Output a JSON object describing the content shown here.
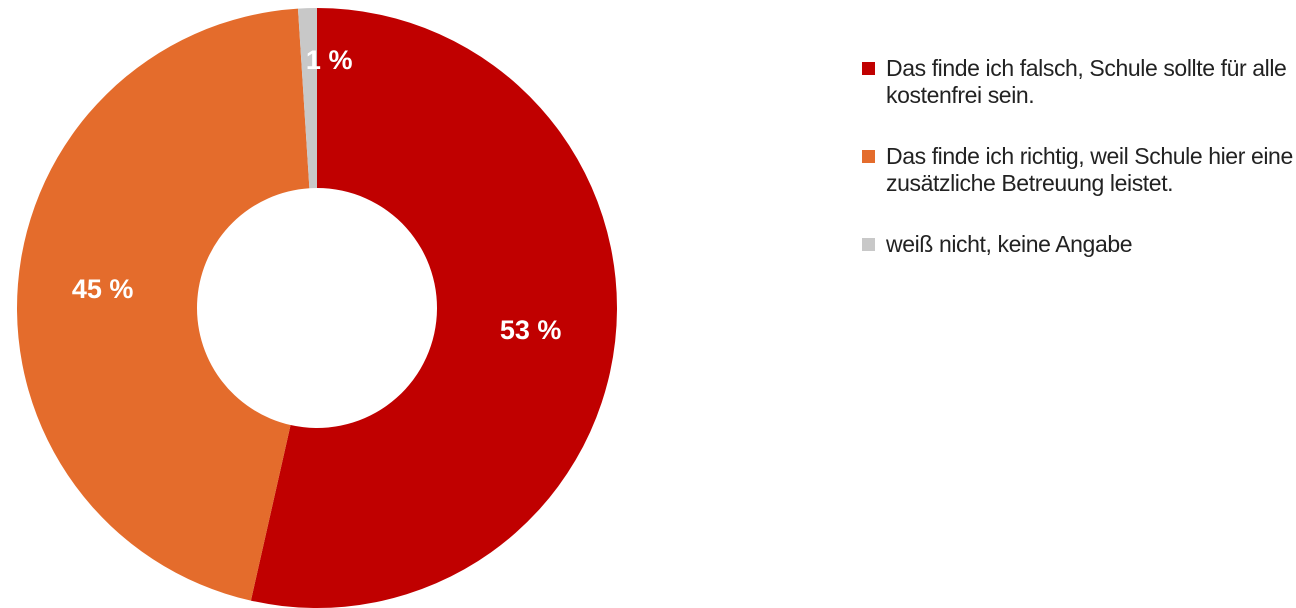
{
  "chart_data": {
    "type": "donut",
    "categories": [
      "Das finde ich falsch, Schule sollte für alle kostenfrei sein.",
      "Das finde ich richtig, weil Schule hier eine zusätzliche Betreuung leistet.",
      "weiß nicht, keine Angabe"
    ],
    "values": [
      53,
      45,
      1
    ],
    "value_labels": [
      "53 %",
      "45 %",
      "1 %"
    ],
    "colors": [
      "#c00000",
      "#e46c2c",
      "#c8c8c8"
    ],
    "legend": "right"
  }
}
